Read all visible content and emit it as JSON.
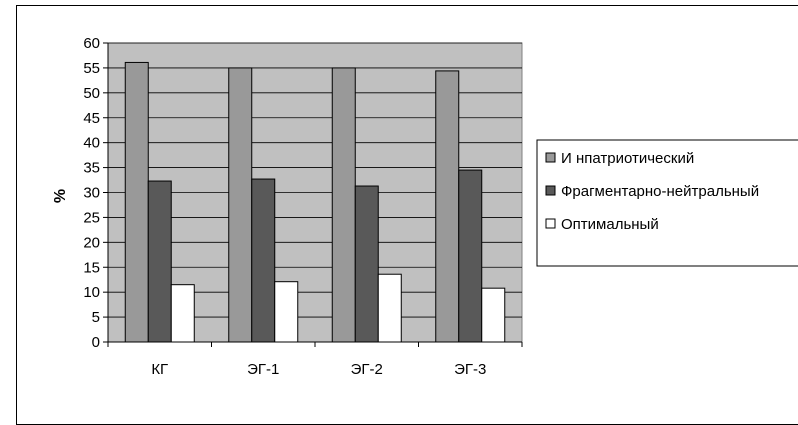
{
  "chart_data": {
    "type": "bar",
    "title": "",
    "xlabel": "",
    "ylabel": "%",
    "ylim": [
      0,
      60
    ],
    "ytick_step": 5,
    "grid": "horizontal",
    "legend_position": "right",
    "categories": [
      "КГ",
      "ЭГ-1",
      "ЭГ-2",
      "ЭГ-3"
    ],
    "series": [
      {
        "name": "И нпатриотический",
        "color": "#999999",
        "values": [
          56.1,
          55.0,
          55.0,
          54.4
        ]
      },
      {
        "name": "Фрагментарно-нейтральный",
        "color": "#595959",
        "values": [
          32.3,
          32.7,
          31.3,
          34.5
        ]
      },
      {
        "name": "Оптимальный",
        "color": "#ffffff",
        "values": [
          11.5,
          12.1,
          13.6,
          10.8
        ]
      }
    ],
    "plot_background": "#c0c0c0"
  }
}
